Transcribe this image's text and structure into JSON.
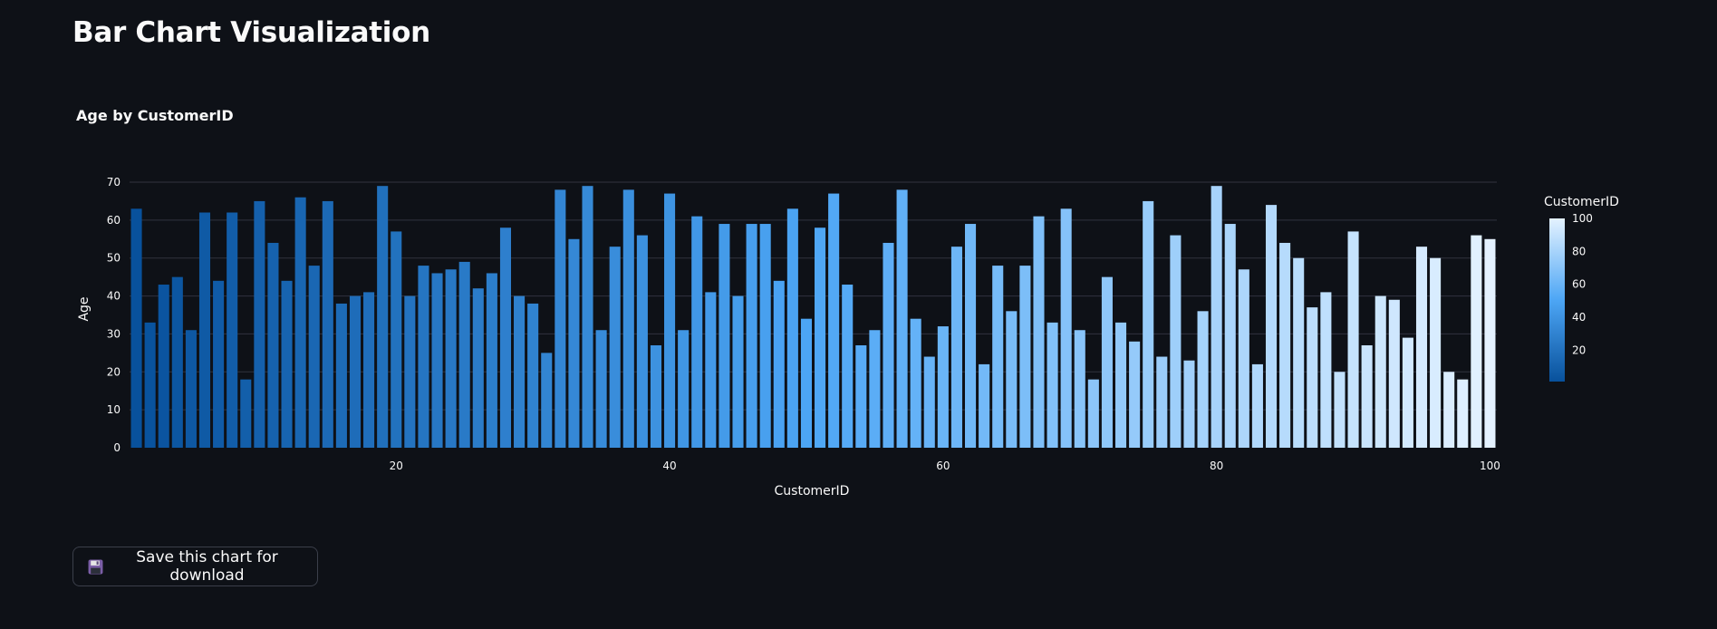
{
  "page": {
    "title": "Bar Chart Visualization"
  },
  "save_button": {
    "label": "Save this chart for download",
    "icon": "floppy-disk-icon"
  },
  "colors": {
    "background": "#0e1117",
    "text": "#fafafa",
    "grid": "#31333f",
    "scale_low": "#08519c",
    "scale_mid": "#4da6f5",
    "scale_high": "#e4f2ff"
  },
  "chart_data": {
    "type": "bar",
    "title": "Age by CustomerID",
    "xlabel": "CustomerID",
    "ylabel": "Age",
    "xlim": [
      0.5,
      100.5
    ],
    "ylim": [
      0,
      70
    ],
    "x_ticks": [
      20,
      40,
      60,
      80,
      100
    ],
    "y_ticks": [
      0,
      10,
      20,
      30,
      40,
      50,
      60,
      70
    ],
    "grid": true,
    "colorbar": {
      "title": "CustomerID",
      "range": [
        1,
        100
      ],
      "ticks": [
        20,
        40,
        60,
        80,
        100
      ],
      "placement": "right"
    },
    "x": [
      1,
      2,
      3,
      4,
      5,
      6,
      7,
      8,
      9,
      10,
      11,
      12,
      13,
      14,
      15,
      16,
      17,
      18,
      19,
      20,
      21,
      22,
      23,
      24,
      25,
      26,
      27,
      28,
      29,
      30,
      31,
      32,
      33,
      34,
      35,
      36,
      37,
      38,
      39,
      40,
      41,
      42,
      43,
      44,
      45,
      46,
      47,
      48,
      49,
      50,
      51,
      52,
      53,
      54,
      55,
      56,
      57,
      58,
      59,
      60,
      61,
      62,
      63,
      64,
      65,
      66,
      67,
      68,
      69,
      70,
      71,
      72,
      73,
      74,
      75,
      76,
      77,
      78,
      79,
      80,
      81,
      82,
      83,
      84,
      85,
      86,
      87,
      88,
      89,
      90,
      91,
      92,
      93,
      94,
      95,
      96,
      97,
      98,
      99,
      100
    ],
    "values": [
      63,
      33,
      43,
      45,
      31,
      62,
      44,
      62,
      18,
      65,
      54,
      44,
      66,
      48,
      65,
      38,
      40,
      41,
      69,
      57,
      40,
      48,
      46,
      47,
      49,
      42,
      46,
      58,
      40,
      38,
      25,
      68,
      55,
      69,
      31,
      53,
      68,
      56,
      27,
      67,
      31,
      61,
      41,
      59,
      40,
      59,
      59,
      44,
      63,
      34,
      58,
      67,
      43,
      27,
      31,
      54,
      68,
      34,
      24,
      32,
      53,
      59,
      22,
      48,
      36,
      48,
      61,
      33,
      63,
      31,
      18,
      45,
      33,
      28,
      65,
      24,
      56,
      23,
      36,
      69,
      59,
      47,
      22,
      64,
      54,
      50,
      37,
      41,
      20,
      57,
      27,
      40,
      39,
      29,
      53,
      50,
      20,
      18,
      56,
      55
    ]
  }
}
